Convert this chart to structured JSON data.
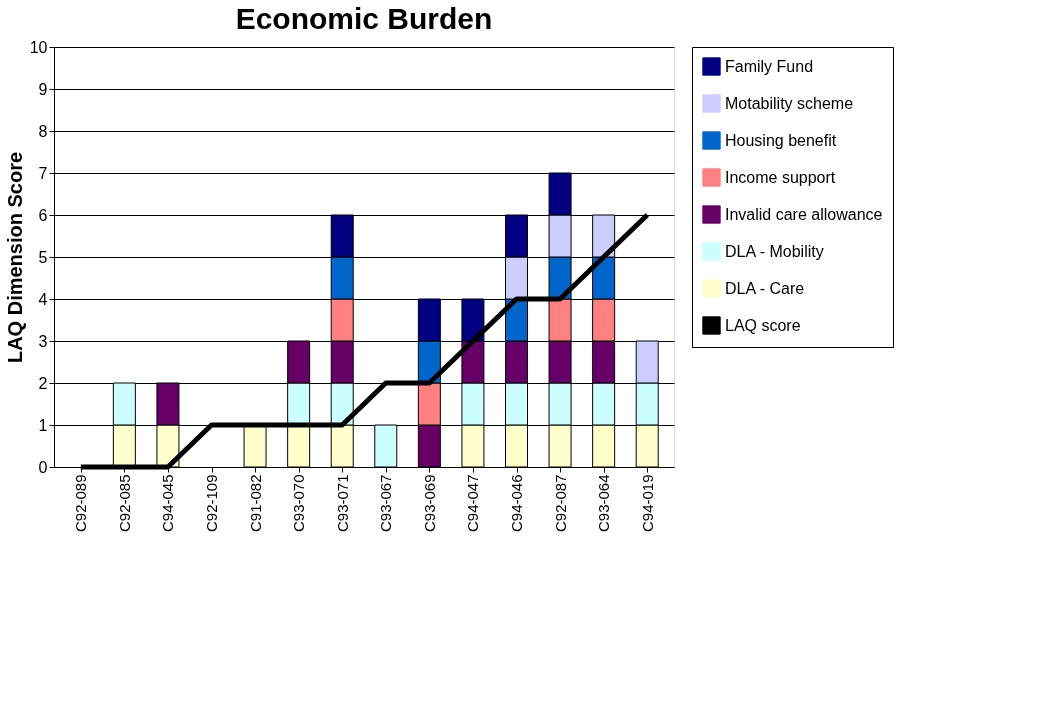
{
  "chart_data": {
    "type": "bar",
    "title": "Economic Burden",
    "ylabel": "LAQ Dimension Score",
    "categories": [
      "C92-089",
      "C92-085",
      "C94-045",
      "C92-109",
      "C91-082",
      "C93-070",
      "C93-071",
      "C93-067",
      "C93-069",
      "C94-047",
      "C94-046",
      "C92-087",
      "C93-064",
      "C94-019"
    ],
    "stacked": true,
    "ylim": [
      0,
      10
    ],
    "yticks": [
      0,
      1,
      2,
      3,
      4,
      5,
      6,
      7,
      8,
      9,
      10
    ],
    "grid": "y",
    "legend": "right",
    "series": [
      {
        "name": "DLA - Care",
        "color": "#ffffcc",
        "values": [
          null,
          1,
          1,
          null,
          1,
          1,
          1,
          null,
          null,
          1,
          1,
          1,
          1,
          1
        ]
      },
      {
        "name": "DLA - Mobility",
        "color": "#ccffff",
        "values": [
          null,
          1,
          null,
          null,
          null,
          1,
          1,
          1,
          null,
          1,
          1,
          1,
          1,
          1
        ]
      },
      {
        "name": "Invalid care allowance",
        "color": "#660066",
        "values": [
          null,
          null,
          1,
          null,
          null,
          1,
          1,
          null,
          1,
          1,
          1,
          1,
          1,
          null
        ]
      },
      {
        "name": "Income support",
        "color": "#ff8080",
        "values": [
          null,
          null,
          null,
          null,
          null,
          null,
          1,
          null,
          1,
          null,
          null,
          1,
          1,
          null
        ]
      },
      {
        "name": "Housing benefit",
        "color": "#0066cc",
        "values": [
          null,
          null,
          null,
          null,
          null,
          null,
          1,
          null,
          1,
          null,
          1,
          1,
          1,
          null
        ]
      },
      {
        "name": "Motability scheme",
        "color": "#ccccff",
        "values": [
          null,
          null,
          null,
          null,
          null,
          null,
          null,
          null,
          null,
          null,
          1,
          1,
          1,
          1
        ]
      },
      {
        "name": "Family Fund",
        "color": "#000080",
        "values": [
          null,
          null,
          null,
          null,
          null,
          null,
          1,
          null,
          1,
          1,
          1,
          1,
          null,
          null
        ]
      },
      {
        "name": "LAQ score",
        "color": "#000000",
        "type": "line",
        "values": [
          0,
          0,
          0,
          1,
          1,
          1,
          1,
          2,
          2,
          3,
          4,
          4,
          5,
          6
        ]
      }
    ]
  }
}
